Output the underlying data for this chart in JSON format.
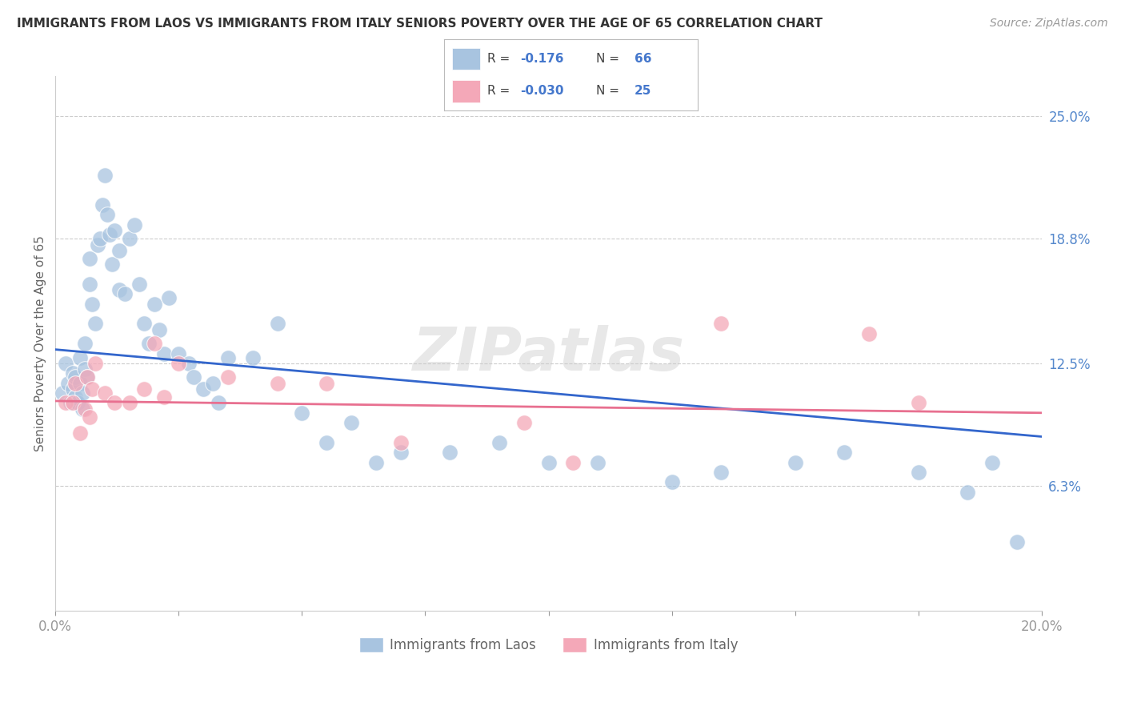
{
  "title": "IMMIGRANTS FROM LAOS VS IMMIGRANTS FROM ITALY SENIORS POVERTY OVER THE AGE OF 65 CORRELATION CHART",
  "source": "Source: ZipAtlas.com",
  "ylabel": "Seniors Poverty Over the Age of 65",
  "ytick_labels": [
    "6.3%",
    "12.5%",
    "18.8%",
    "25.0%"
  ],
  "ytick_values": [
    6.3,
    12.5,
    18.8,
    25.0
  ],
  "xlim": [
    0.0,
    20.0
  ],
  "ylim": [
    0.0,
    27.0
  ],
  "laos_R": "-0.176",
  "laos_N": "66",
  "italy_R": "-0.030",
  "italy_N": "25",
  "blue_color": "#a8c4e0",
  "pink_color": "#f4a8b8",
  "blue_line_color": "#3366cc",
  "pink_line_color": "#e87090",
  "watermark": "ZIPatlas",
  "blue_line_start": 13.2,
  "blue_line_end": 8.8,
  "pink_line_start": 10.6,
  "pink_line_end": 10.0,
  "laos_x": [
    0.15,
    0.2,
    0.25,
    0.3,
    0.35,
    0.35,
    0.4,
    0.4,
    0.45,
    0.5,
    0.5,
    0.55,
    0.55,
    0.6,
    0.6,
    0.65,
    0.7,
    0.7,
    0.75,
    0.8,
    0.85,
    0.9,
    0.95,
    1.0,
    1.05,
    1.1,
    1.15,
    1.2,
    1.3,
    1.3,
    1.4,
    1.5,
    1.6,
    1.7,
    1.8,
    1.9,
    2.0,
    2.1,
    2.2,
    2.3,
    2.5,
    2.7,
    2.8,
    3.0,
    3.2,
    3.3,
    3.5,
    4.0,
    4.5,
    5.0,
    5.5,
    6.0,
    6.5,
    7.0,
    8.0,
    9.0,
    10.0,
    11.0,
    12.5,
    13.5,
    15.0,
    16.0,
    17.5,
    18.5,
    19.0,
    19.5
  ],
  "laos_y": [
    11.0,
    12.5,
    11.5,
    10.5,
    11.2,
    12.0,
    11.8,
    10.8,
    10.5,
    12.8,
    11.5,
    11.0,
    10.2,
    13.5,
    12.2,
    11.8,
    16.5,
    17.8,
    15.5,
    14.5,
    18.5,
    18.8,
    20.5,
    22.0,
    20.0,
    19.0,
    17.5,
    19.2,
    18.2,
    16.2,
    16.0,
    18.8,
    19.5,
    16.5,
    14.5,
    13.5,
    15.5,
    14.2,
    13.0,
    15.8,
    13.0,
    12.5,
    11.8,
    11.2,
    11.5,
    10.5,
    12.8,
    12.8,
    14.5,
    10.0,
    8.5,
    9.5,
    7.5,
    8.0,
    8.0,
    8.5,
    7.5,
    7.5,
    6.5,
    7.0,
    7.5,
    8.0,
    7.0,
    6.0,
    7.5,
    3.5
  ],
  "italy_x": [
    0.2,
    0.35,
    0.4,
    0.5,
    0.6,
    0.65,
    0.7,
    0.75,
    0.8,
    1.0,
    1.2,
    1.5,
    1.8,
    2.0,
    2.2,
    2.5,
    3.5,
    4.5,
    5.5,
    7.0,
    9.5,
    10.5,
    13.5,
    16.5,
    17.5
  ],
  "italy_y": [
    10.5,
    10.5,
    11.5,
    9.0,
    10.2,
    11.8,
    9.8,
    11.2,
    12.5,
    11.0,
    10.5,
    10.5,
    11.2,
    13.5,
    10.8,
    12.5,
    11.8,
    11.5,
    11.5,
    8.5,
    9.5,
    7.5,
    14.5,
    14.0,
    10.5
  ]
}
